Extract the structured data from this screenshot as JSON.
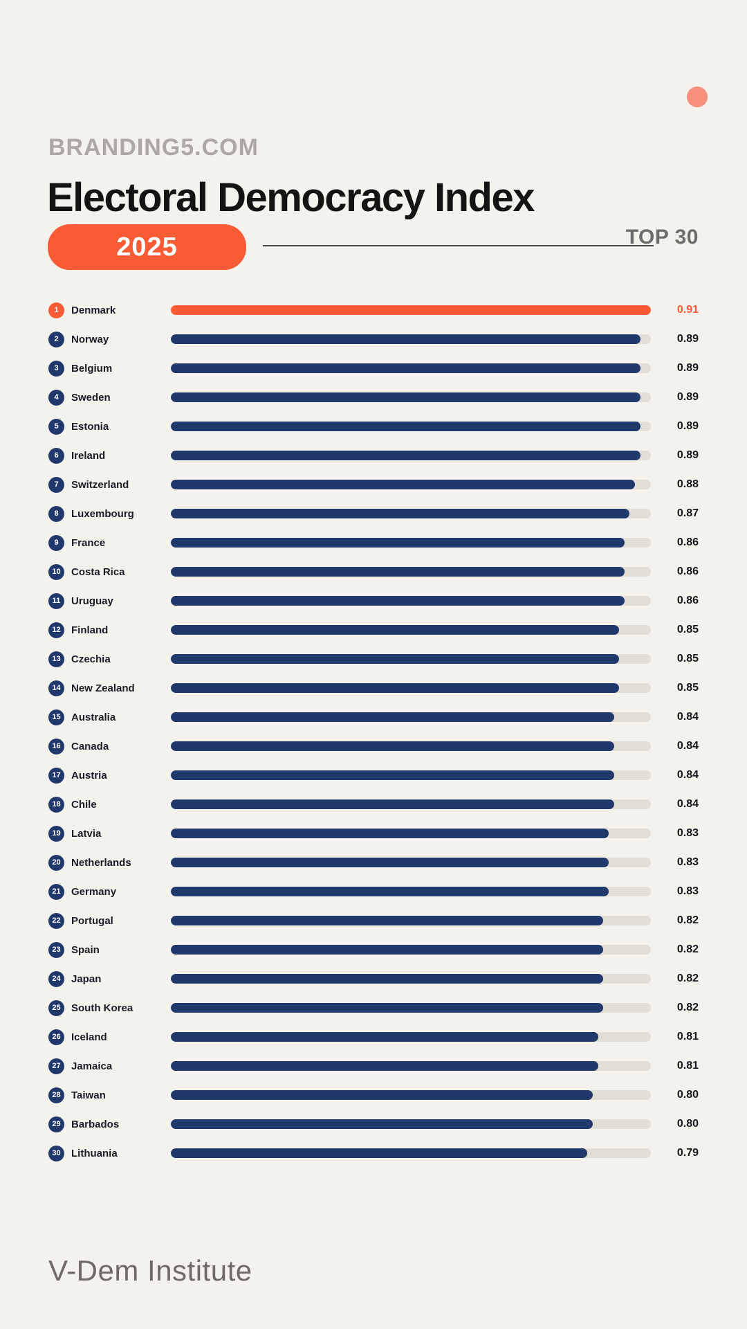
{
  "page": {
    "brand": "BRANDING5.COM",
    "title": "Electoral Democracy Index",
    "year_badge": "2025",
    "top_label": "TOP 30",
    "source": "V-Dem Institute"
  },
  "colors": {
    "background": "#F4F2ED",
    "accent_orange": "#F95B35",
    "bar_navy": "#20386C",
    "track_gray": "#E2DFD6",
    "corner_dot_salmon": "#F9907B",
    "brand_gray": "#ACA9A4",
    "top_label_gray": "#6C6C6C",
    "text_dark": "#15151B"
  },
  "chart_data": {
    "type": "bar",
    "orientation": "horizontal",
    "title": "Electoral Democracy Index",
    "subtitle": "2025 — TOP 30",
    "source": "V-Dem Institute",
    "value_range": [
      0,
      0.91
    ],
    "scale_max": 0.91,
    "highlight_rank": 1,
    "legend": "none",
    "grid": "off",
    "rows": [
      {
        "rank": 1,
        "country": "Denmark",
        "value": "0.91"
      },
      {
        "rank": 2,
        "country": "Norway",
        "value": "0.89"
      },
      {
        "rank": 3,
        "country": "Belgium",
        "value": "0.89"
      },
      {
        "rank": 4,
        "country": "Sweden",
        "value": "0.89"
      },
      {
        "rank": 5,
        "country": "Estonia",
        "value": "0.89"
      },
      {
        "rank": 6,
        "country": "Ireland",
        "value": "0.89"
      },
      {
        "rank": 7,
        "country": "Switzerland",
        "value": "0.88"
      },
      {
        "rank": 8,
        "country": "Luxembourg",
        "value": "0.87"
      },
      {
        "rank": 9,
        "country": "France",
        "value": "0.86"
      },
      {
        "rank": 10,
        "country": "Costa Rica",
        "value": "0.86"
      },
      {
        "rank": 11,
        "country": "Uruguay",
        "value": "0.86"
      },
      {
        "rank": 12,
        "country": "Finland",
        "value": "0.85"
      },
      {
        "rank": 13,
        "country": "Czechia",
        "value": "0.85"
      },
      {
        "rank": 14,
        "country": "New Zealand",
        "value": "0.85"
      },
      {
        "rank": 15,
        "country": "Australia",
        "value": "0.84"
      },
      {
        "rank": 16,
        "country": "Canada",
        "value": "0.84"
      },
      {
        "rank": 17,
        "country": "Austria",
        "value": "0.84"
      },
      {
        "rank": 18,
        "country": "Chile",
        "value": "0.84"
      },
      {
        "rank": 19,
        "country": "Latvia",
        "value": "0.83"
      },
      {
        "rank": 20,
        "country": "Netherlands",
        "value": "0.83"
      },
      {
        "rank": 21,
        "country": "Germany",
        "value": "0.83"
      },
      {
        "rank": 22,
        "country": "Portugal",
        "value": "0.82"
      },
      {
        "rank": 23,
        "country": "Spain",
        "value": "0.82"
      },
      {
        "rank": 24,
        "country": "Japan",
        "value": "0.82"
      },
      {
        "rank": 25,
        "country": "South Korea",
        "value": "0.82"
      },
      {
        "rank": 26,
        "country": "Iceland",
        "value": "0.81"
      },
      {
        "rank": 27,
        "country": "Jamaica",
        "value": "0.81"
      },
      {
        "rank": 28,
        "country": "Taiwan",
        "value": "0.80"
      },
      {
        "rank": 29,
        "country": "Barbados",
        "value": "0.80"
      },
      {
        "rank": 30,
        "country": "Lithuania",
        "value": "0.79"
      }
    ]
  }
}
